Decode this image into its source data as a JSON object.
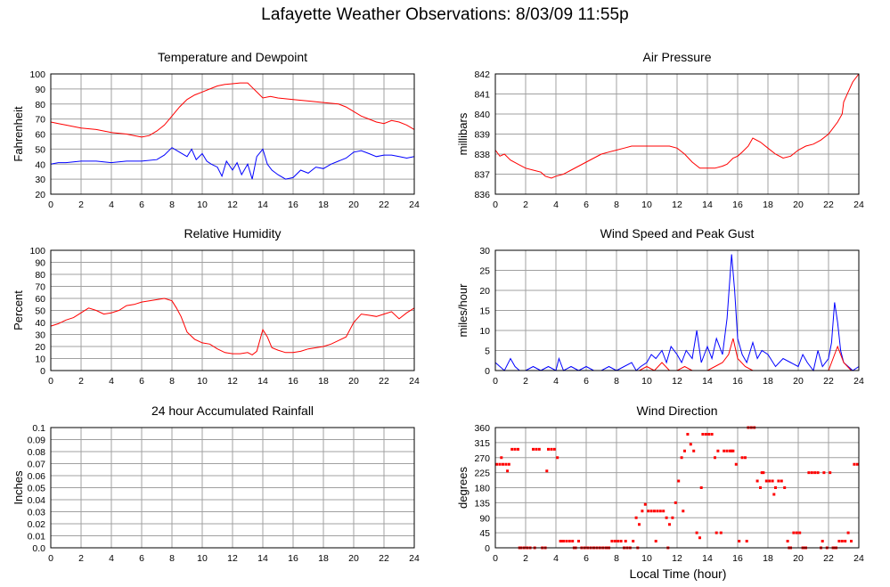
{
  "page_title": "Lafayette Weather Observations: 8/03/09 11:55p",
  "colors": {
    "red": "#ff0000",
    "blue": "#0000ff",
    "grid": "#a0a0a0",
    "frame": "#000000"
  },
  "x_axis_label": "Local Time (hour)",
  "chart_data": [
    {
      "id": "temp",
      "type": "line",
      "title": "Temperature and Dewpoint",
      "ylabel": "Fahrenheit",
      "xlim": [
        0,
        24
      ],
      "ylim": [
        20,
        100
      ],
      "x_ticks": [
        "0",
        "2",
        "4",
        "6",
        "8",
        "10",
        "12",
        "14",
        "16",
        "18",
        "20",
        "22",
        "24"
      ],
      "y_ticks": [
        "20",
        "30",
        "40",
        "50",
        "60",
        "70",
        "80",
        "90",
        "100"
      ],
      "grid": true,
      "series": [
        {
          "color": "red",
          "x": [
            0,
            0.5,
            1,
            2,
            3,
            4,
            5,
            5.5,
            6,
            6.5,
            7,
            7.5,
            8,
            8.5,
            9,
            9.5,
            10,
            10.5,
            11,
            11.5,
            12,
            12.5,
            13,
            13.3,
            13.7,
            14,
            14.5,
            15,
            16,
            17,
            18,
            19,
            19.5,
            20,
            20.5,
            21,
            21.5,
            22,
            22.5,
            23,
            23.5,
            24
          ],
          "y": [
            68,
            67,
            66,
            64,
            63,
            61,
            60,
            59,
            58,
            59,
            62,
            66,
            72,
            78,
            83,
            86,
            88,
            90,
            92,
            93,
            93.5,
            94,
            94,
            91,
            87,
            84,
            85,
            84,
            83,
            82,
            81,
            80,
            78,
            75,
            72,
            70,
            68,
            67,
            69,
            68,
            66,
            63
          ]
        },
        {
          "color": "blue",
          "x": [
            0,
            0.5,
            1,
            2,
            3,
            4,
            5,
            6,
            7,
            7.5,
            8,
            8.5,
            9,
            9.3,
            9.6,
            10,
            10.3,
            10.6,
            11,
            11.3,
            11.6,
            12,
            12.3,
            12.6,
            13,
            13.3,
            13.6,
            14,
            14.3,
            14.6,
            15,
            15.5,
            16,
            16.5,
            17,
            17.5,
            18,
            18.5,
            19,
            19.5,
            20,
            20.5,
            21,
            21.5,
            22,
            22.5,
            23,
            23.5,
            24
          ],
          "y": [
            40,
            41,
            41,
            42,
            42,
            41,
            42,
            42,
            43,
            46,
            51,
            48,
            45,
            50,
            43,
            47,
            42,
            40,
            38,
            32,
            42,
            36,
            41,
            33,
            40,
            30,
            45,
            50,
            40,
            36,
            33,
            30,
            31,
            36,
            34,
            38,
            37,
            40,
            42,
            44,
            48,
            49,
            47,
            45,
            46,
            46,
            45,
            44,
            45
          ]
        }
      ]
    },
    {
      "id": "pressure",
      "type": "line",
      "title": "Air Pressure",
      "ylabel": "millibars",
      "xlim": [
        0,
        24
      ],
      "ylim": [
        836,
        842
      ],
      "x_ticks": [
        "0",
        "2",
        "4",
        "6",
        "8",
        "10",
        "12",
        "14",
        "16",
        "18",
        "20",
        "22",
        "24"
      ],
      "y_ticks": [
        "836",
        "837",
        "838",
        "839",
        "840",
        "841",
        "842"
      ],
      "grid": true,
      "series": [
        {
          "color": "red",
          "x": [
            0,
            0.3,
            0.6,
            1,
            1.5,
            2,
            2.5,
            3,
            3.3,
            3.7,
            4,
            4.5,
            5,
            5.5,
            6,
            6.5,
            7,
            7.5,
            8,
            8.5,
            9,
            9.5,
            10,
            10.5,
            11,
            11.5,
            12,
            12.5,
            13,
            13.5,
            14,
            14.5,
            15,
            15.3,
            15.7,
            16,
            16.3,
            16.7,
            17,
            17.5,
            18,
            18.5,
            19,
            19.5,
            20,
            20.5,
            21,
            21.5,
            22,
            22.3,
            22.6,
            22.9,
            23,
            23.3,
            23.6,
            24
          ],
          "y": [
            838.2,
            837.9,
            838.0,
            837.7,
            837.5,
            837.3,
            837.2,
            837.1,
            836.9,
            836.8,
            836.9,
            837.0,
            837.2,
            837.4,
            837.6,
            837.8,
            838.0,
            838.1,
            838.2,
            838.3,
            838.4,
            838.4,
            838.4,
            838.4,
            838.4,
            838.4,
            838.3,
            838.0,
            837.6,
            837.3,
            837.3,
            837.3,
            837.4,
            837.5,
            837.8,
            837.9,
            838.1,
            838.4,
            838.8,
            838.6,
            838.3,
            838.0,
            837.8,
            837.9,
            838.2,
            838.4,
            838.5,
            838.7,
            839.0,
            839.3,
            839.6,
            840.0,
            840.6,
            841.1,
            841.6,
            842.0
          ]
        }
      ]
    },
    {
      "id": "humidity",
      "type": "line",
      "title": "Relative Humidity",
      "ylabel": "Percent",
      "xlim": [
        0,
        24
      ],
      "ylim": [
        0,
        100
      ],
      "x_ticks": [
        "0",
        "2",
        "4",
        "6",
        "8",
        "10",
        "12",
        "14",
        "16",
        "18",
        "20",
        "22",
        "24"
      ],
      "y_ticks": [
        "0",
        "10",
        "20",
        "30",
        "40",
        "50",
        "60",
        "70",
        "80",
        "90",
        "100"
      ],
      "grid": true,
      "series": [
        {
          "color": "red",
          "x": [
            0,
            0.5,
            1,
            1.5,
            2,
            2.5,
            3,
            3.5,
            4,
            4.5,
            5,
            5.5,
            6,
            6.5,
            7,
            7.5,
            8,
            8.3,
            8.6,
            9,
            9.5,
            10,
            10.5,
            11,
            11.5,
            12,
            12.5,
            13,
            13.3,
            13.6,
            14,
            14.3,
            14.6,
            15,
            15.5,
            16,
            16.5,
            17,
            17.5,
            18,
            18.5,
            19,
            19.5,
            20,
            20.5,
            21,
            21.5,
            22,
            22.5,
            23,
            23.5,
            24
          ],
          "y": [
            37,
            39,
            42,
            44,
            48,
            52,
            50,
            47,
            48,
            50,
            54,
            55,
            57,
            58,
            59,
            60,
            58,
            52,
            45,
            32,
            26,
            23,
            22,
            18,
            15,
            14,
            14,
            15,
            13,
            16,
            34,
            28,
            19,
            17,
            15,
            15,
            16,
            18,
            19,
            20,
            22,
            25,
            28,
            40,
            47,
            46,
            45,
            47,
            49,
            43,
            48,
            52
          ]
        }
      ]
    },
    {
      "id": "wind",
      "type": "line",
      "title": "Wind Speed and Peak Gust",
      "ylabel": "miles/hour",
      "xlim": [
        0,
        24
      ],
      "ylim": [
        0,
        30
      ],
      "x_ticks": [
        "0",
        "2",
        "4",
        "6",
        "8",
        "10",
        "12",
        "14",
        "16",
        "18",
        "20",
        "22",
        "24"
      ],
      "y_ticks": [
        "0",
        "5",
        "10",
        "15",
        "20",
        "25",
        "30"
      ],
      "grid": true,
      "series": [
        {
          "color": "blue",
          "x": [
            0,
            0.3,
            0.6,
            1,
            1.3,
            1.6,
            2,
            2.5,
            3,
            3.5,
            4,
            4.2,
            4.5,
            5,
            5.5,
            6,
            6.5,
            7,
            7.5,
            8,
            8.5,
            9,
            9.3,
            9.6,
            10,
            10.3,
            10.6,
            11,
            11.3,
            11.6,
            12,
            12.3,
            12.6,
            13,
            13.3,
            13.6,
            14,
            14.3,
            14.6,
            15,
            15.3,
            15.6,
            15.8,
            16,
            16.3,
            16.6,
            17,
            17.3,
            17.6,
            18,
            18.5,
            19,
            19.5,
            20,
            20.3,
            20.6,
            21,
            21.3,
            21.6,
            22,
            22.2,
            22.4,
            22.6,
            22.8,
            23,
            23.3,
            23.6,
            24
          ],
          "y": [
            2,
            1,
            0,
            3,
            1,
            0,
            0,
            1,
            0,
            1,
            0,
            3,
            0,
            1,
            0,
            1,
            0,
            0,
            1,
            0,
            1,
            2,
            0,
            1,
            2,
            4,
            3,
            5,
            2,
            6,
            4,
            2,
            5,
            3,
            10,
            2,
            6,
            3,
            8,
            4,
            13,
            29,
            20,
            8,
            4,
            2,
            7,
            3,
            5,
            4,
            1,
            3,
            2,
            1,
            4,
            2,
            0,
            5,
            1,
            3,
            7,
            17,
            12,
            5,
            2,
            1,
            0,
            1
          ]
        },
        {
          "color": "red",
          "x": [
            0,
            9,
            9.5,
            10,
            10.5,
            11,
            11.5,
            12,
            12.5,
            13,
            13.5,
            14,
            14.5,
            15,
            15.4,
            15.7,
            16,
            16.5,
            17,
            18,
            19,
            20,
            21,
            21.5,
            22,
            22.3,
            22.6,
            23,
            23.5,
            24
          ],
          "y": [
            0,
            0,
            0,
            1,
            0,
            2,
            0,
            0,
            1,
            0,
            0,
            0,
            1,
            2,
            4,
            8,
            3,
            1,
            0,
            0,
            0,
            0,
            0,
            0,
            0,
            3,
            6,
            2,
            0,
            0
          ]
        }
      ]
    },
    {
      "id": "rain",
      "type": "line",
      "title": "24 hour Accumulated Rainfall",
      "ylabel": "Inches",
      "xlim": [
        0,
        24
      ],
      "ylim": [
        0,
        0.1
      ],
      "x_ticks": [
        "0",
        "2",
        "4",
        "6",
        "8",
        "10",
        "12",
        "14",
        "16",
        "18",
        "20",
        "22",
        "24"
      ],
      "y_ticks": [
        "0.0",
        "0.01",
        "0.02",
        "0.03",
        "0.04",
        "0.05",
        "0.06",
        "0.07",
        "0.08",
        "0.09",
        "0.1"
      ],
      "grid": true,
      "series": [
        {
          "color": "red",
          "x": [
            0,
            24
          ],
          "y": [
            0,
            0
          ]
        }
      ]
    },
    {
      "id": "direction",
      "type": "scatter",
      "title": "Wind Direction",
      "ylabel": "degrees",
      "xlim": [
        0,
        24
      ],
      "ylim": [
        0,
        360
      ],
      "x_ticks": [
        "0",
        "2",
        "4",
        "6",
        "8",
        "10",
        "12",
        "14",
        "16",
        "18",
        "20",
        "22",
        "24"
      ],
      "y_ticks": [
        "0",
        "45",
        "90",
        "135",
        "180",
        "225",
        "270",
        "315",
        "360"
      ],
      "grid": true,
      "series": [
        {
          "color": "red",
          "x": [
            0.1,
            0.3,
            0.5,
            0.7,
            0.9,
            1.1,
            1.3,
            1.5,
            1.7,
            1.9,
            2.1,
            2.3,
            2.5,
            2.7,
            2.9,
            3.1,
            3.3,
            3.5,
            3.7,
            3.9,
            4.1,
            4.3,
            4.5,
            4.7,
            4.9,
            5.1,
            5.3,
            5.5,
            5.7,
            5.9,
            6.1,
            6.3,
            6.5,
            6.7,
            6.9,
            7.1,
            7.3,
            7.5,
            7.7,
            7.9,
            8.1,
            8.3,
            8.5,
            8.7,
            8.9,
            9.1,
            9.3,
            9.5,
            9.7,
            9.9,
            10.1,
            10.3,
            10.5,
            10.7,
            10.9,
            11.1,
            11.3,
            11.5,
            11.7,
            11.9,
            12.1,
            12.3,
            12.5,
            12.7,
            12.9,
            13.1,
            13.3,
            13.5,
            13.7,
            13.9,
            14.1,
            14.3,
            14.5,
            14.7,
            14.9,
            15.1,
            15.3,
            15.5,
            15.7,
            15.9,
            16.1,
            16.3,
            16.5,
            16.7,
            16.9,
            17.1,
            17.3,
            17.5,
            17.7,
            17.9,
            18.1,
            18.3,
            18.5,
            18.7,
            18.9,
            19.1,
            19.3,
            19.5,
            19.7,
            19.9,
            20.1,
            20.3,
            20.5,
            20.7,
            20.9,
            21.1,
            21.3,
            21.5,
            21.7,
            21.9,
            22.1,
            22.3,
            22.5,
            22.7,
            22.9,
            23.1,
            23.3,
            23.5,
            23.7,
            23.9,
            0.4,
            0.8,
            1.6,
            2.6,
            3.4,
            4.4,
            5.2,
            7.4,
            8.6,
            9.4,
            10.6,
            11.4,
            12.4,
            13.6,
            14.6,
            15.6,
            16.6,
            17.6,
            18.4,
            19.4,
            20.4,
            21.6,
            22.4
          ],
          "y": [
            250,
            250,
            250,
            250,
            250,
            295,
            295,
            295,
            0,
            0,
            0,
            0,
            295,
            295,
            295,
            0,
            0,
            295,
            295,
            295,
            270,
            20,
            20,
            20,
            20,
            20,
            0,
            20,
            0,
            0,
            0,
            0,
            0,
            0,
            0,
            0,
            0,
            0,
            20,
            20,
            20,
            20,
            0,
            0,
            0,
            20,
            90,
            70,
            110,
            130,
            110,
            110,
            110,
            110,
            110,
            110,
            90,
            70,
            90,
            135,
            200,
            270,
            290,
            340,
            310,
            290,
            45,
            30,
            340,
            340,
            340,
            340,
            270,
            290,
            45,
            290,
            290,
            290,
            290,
            250,
            20,
            270,
            270,
            360,
            360,
            360,
            200,
            180,
            225,
            200,
            200,
            200,
            180,
            200,
            200,
            180,
            20,
            0,
            45,
            45,
            45,
            0,
            0,
            225,
            225,
            225,
            225,
            0,
            225,
            0,
            225,
            0,
            0,
            20,
            20,
            20,
            45,
            20,
            250,
            250,
            270,
            230,
            0,
            0,
            230,
            20,
            0,
            0,
            20,
            0,
            20,
            0,
            110,
            180,
            45,
            290,
            20,
            225,
            160,
            0,
            0,
            20,
            0
          ]
        }
      ]
    }
  ]
}
